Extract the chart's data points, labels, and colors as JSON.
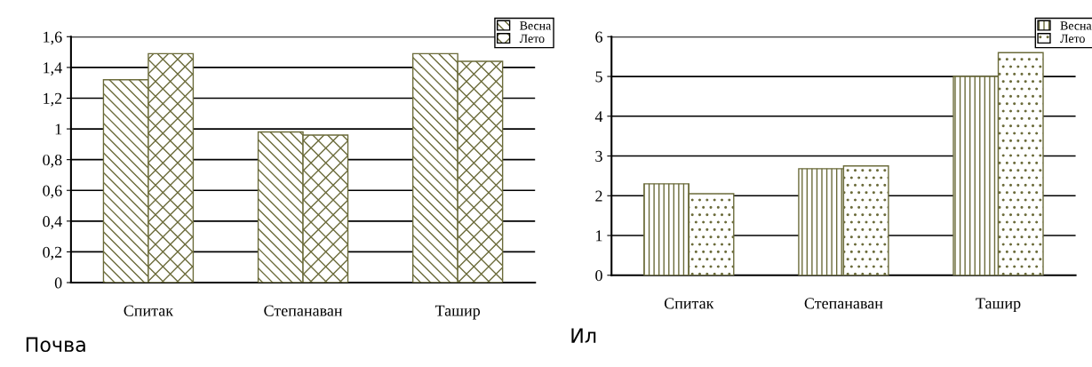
{
  "chart_data": [
    {
      "type": "bar",
      "categories": [
        "Спитак",
        "Степанаван",
        "Ташир"
      ],
      "series": [
        {
          "name": "Весна",
          "color": "#6b6b3a",
          "values": [
            1.32,
            0.98,
            1.49
          ]
        },
        {
          "name": "Лето",
          "color": "#6b6b3a",
          "values": [
            1.49,
            0.96,
            1.44
          ]
        }
      ],
      "ylim": [
        0,
        1.6
      ],
      "yticks": [
        0,
        {
          "value": 0.2,
          "label": "0,2"
        },
        {
          "value": 0.4,
          "label": "0,4"
        },
        {
          "value": 0.6,
          "label": "0,6"
        },
        {
          "value": 0.8,
          "label": "0,8"
        },
        1,
        {
          "value": 1.2,
          "label": "1,2"
        },
        {
          "value": 1.4,
          "label": "1,4"
        },
        {
          "value": 1.6,
          "label": "1,6"
        }
      ],
      "grid": "y",
      "legend": "top right",
      "annotations": [
        "Почва"
      ]
    },
    {
      "type": "bar",
      "categories": [
        "Спитак",
        "Степанаван",
        "Ташир"
      ],
      "series": [
        {
          "name": "Весна",
          "color": "#6b6b3a",
          "values": [
            2.3,
            2.68,
            5.0
          ]
        },
        {
          "name": "Лето",
          "color": "#6b6b3a",
          "values": [
            2.05,
            2.75,
            5.6
          ]
        }
      ],
      "ylim": [
        0,
        6
      ],
      "yticks": [
        0,
        1,
        2,
        3,
        4,
        5,
        6
      ],
      "grid": "y",
      "legend": "top right",
      "annotations": [
        "Ил"
      ]
    }
  ]
}
